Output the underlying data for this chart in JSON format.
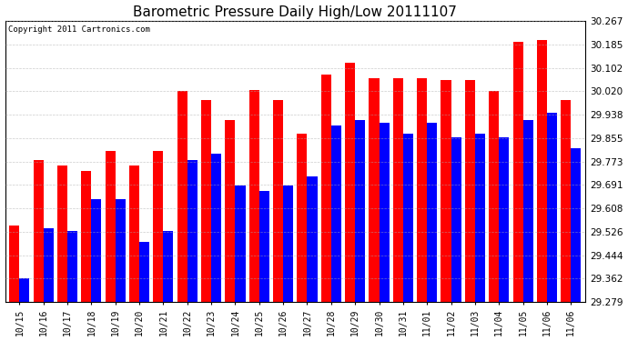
{
  "title": "Barometric Pressure Daily High/Low 20111107",
  "copyright": "Copyright 2011 Cartronics.com",
  "dates": [
    "10/15",
    "10/16",
    "10/17",
    "10/18",
    "10/19",
    "10/20",
    "10/21",
    "10/22",
    "10/23",
    "10/24",
    "10/25",
    "10/26",
    "10/27",
    "10/28",
    "10/29",
    "10/30",
    "10/31",
    "11/01",
    "11/02",
    "11/03",
    "11/04",
    "11/05",
    "11/06",
    "11/06"
  ],
  "highs": [
    29.55,
    29.78,
    29.76,
    29.74,
    29.81,
    29.76,
    29.81,
    30.02,
    29.99,
    29.92,
    30.025,
    29.99,
    29.87,
    30.08,
    30.12,
    30.065,
    30.065,
    30.065,
    30.06,
    30.06,
    30.02,
    30.195,
    30.2,
    29.99
  ],
  "lows": [
    29.362,
    29.54,
    29.53,
    29.64,
    29.64,
    29.49,
    29.53,
    29.78,
    29.8,
    29.69,
    29.67,
    29.69,
    29.72,
    29.9,
    29.92,
    29.91,
    29.87,
    29.91,
    29.86,
    29.87,
    29.86,
    29.92,
    29.945,
    29.82
  ],
  "high_color": "#ff0000",
  "low_color": "#0000ff",
  "bg_color": "#ffffff",
  "plot_bg_color": "#ffffff",
  "grid_color": "#aaaaaa",
  "ymin": 29.279,
  "ymax": 30.267,
  "yticks": [
    29.279,
    29.362,
    29.444,
    29.526,
    29.608,
    29.691,
    29.773,
    29.855,
    29.938,
    30.02,
    30.102,
    30.185,
    30.267
  ]
}
